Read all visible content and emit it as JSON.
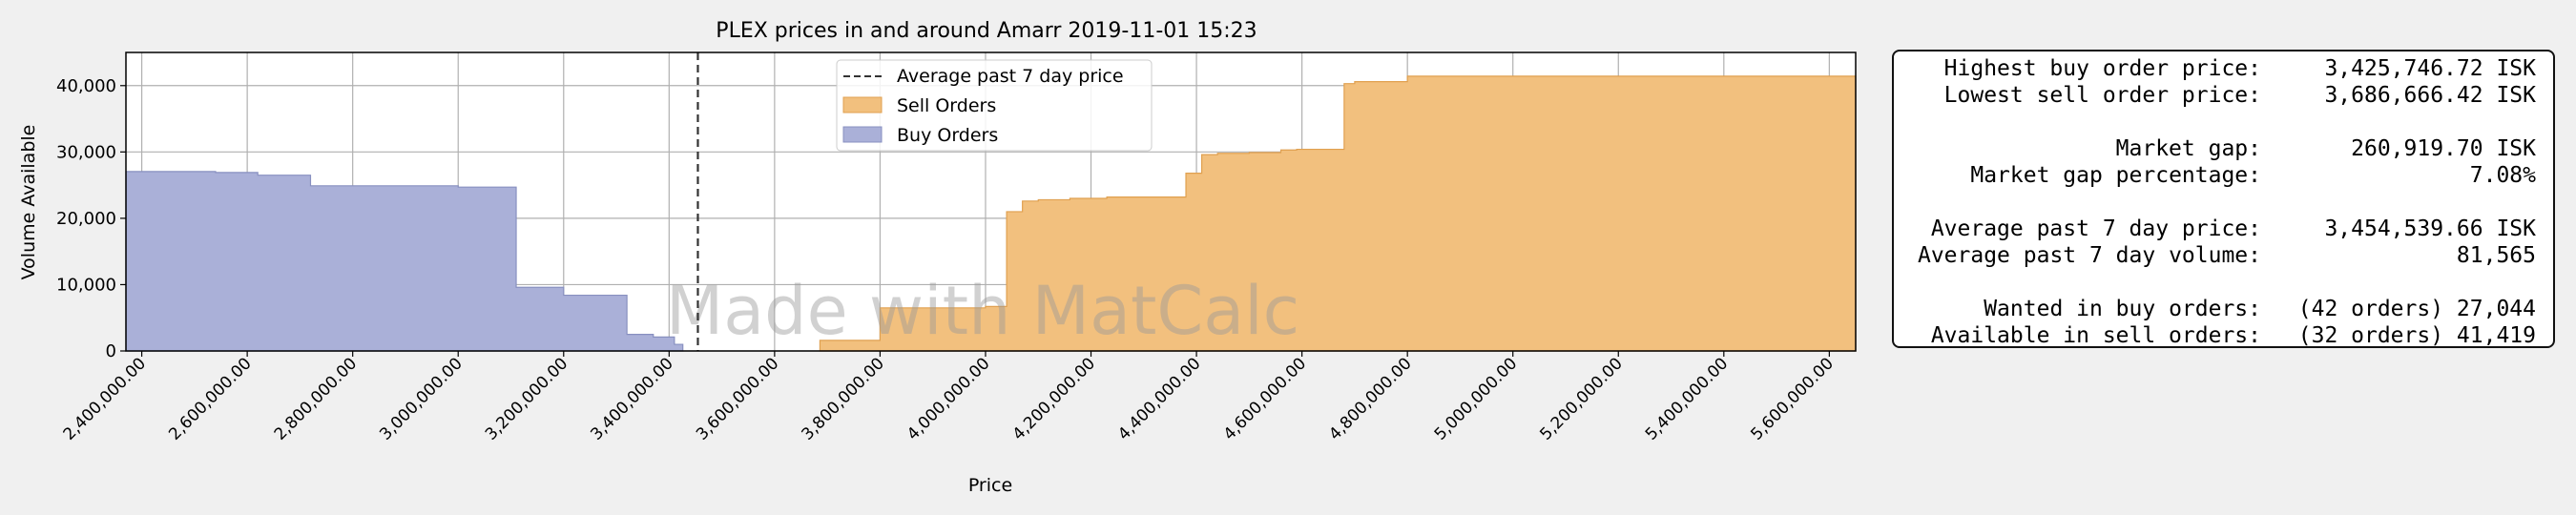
{
  "chart_data": {
    "type": "area",
    "title": "PLEX prices in and around Amarr 2019-11-01 15:23",
    "xlabel": "Price",
    "ylabel": "Volume Available",
    "xlim": [
      2370000,
      5650000
    ],
    "ylim": [
      0,
      45000
    ],
    "x_ticks": [
      2400000,
      2600000,
      2800000,
      3000000,
      3200000,
      3400000,
      3600000,
      3800000,
      4000000,
      4200000,
      4400000,
      4600000,
      4800000,
      5000000,
      5200000,
      5400000,
      5600000
    ],
    "x_tick_labels": [
      "2,400,000.00",
      "2,600,000.00",
      "2,800,000.00",
      "3,000,000.00",
      "3,200,000.00",
      "3,400,000.00",
      "3,600,000.00",
      "3,800,000.00",
      "4,000,000.00",
      "4,200,000.00",
      "4,400,000.00",
      "4,600,000.00",
      "4,800,000.00",
      "5,000,000.00",
      "5,200,000.00",
      "5,400,000.00",
      "5,600,000.00"
    ],
    "y_ticks": [
      0,
      10000,
      20000,
      30000,
      40000
    ],
    "y_tick_labels": [
      "0",
      "10,000",
      "20,000",
      "30,000",
      "40,000"
    ],
    "grid": true,
    "legend_placement": "top-center",
    "watermark": "Made with MatCalc",
    "avg_line": {
      "name": "Average past 7 day price",
      "x": 3454539.66,
      "color": "#333333"
    },
    "series": [
      {
        "name": "Buy Orders",
        "color": "#aab0d8",
        "edge": "#8890c0",
        "x": [
          2370000,
          2540000,
          2620000,
          2720000,
          3000000,
          3110000,
          3200000,
          3320000,
          3370000,
          3410000,
          3426000
        ],
        "y": [
          27044,
          26900,
          26500,
          24900,
          24700,
          9600,
          8400,
          2500,
          2100,
          1000,
          400
        ]
      },
      {
        "name": "Sell Orders",
        "color": "#f2c07e",
        "edge": "#e0a050",
        "x": [
          3686000,
          3800000,
          4000000,
          4040000,
          4070000,
          4100000,
          4160000,
          4230000,
          4380000,
          4410000,
          4440000,
          4500000,
          4560000,
          4590000,
          4680000,
          4700000,
          4800000,
          5650000
        ],
        "y": [
          1600,
          6500,
          6700,
          21000,
          22600,
          22800,
          23000,
          23200,
          26800,
          29600,
          29800,
          29900,
          30300,
          30400,
          40300,
          40600,
          41419,
          41419
        ]
      }
    ]
  },
  "info_box": {
    "rows": [
      {
        "label": "Highest buy order price:",
        "value": "3,425,746.72 ISK"
      },
      {
        "label": "Lowest sell order price:",
        "value": "3,686,666.42 ISK"
      },
      {
        "label": "Market gap:",
        "value": "260,919.70 ISK"
      },
      {
        "label": "Market gap percentage:",
        "value": "7.08%"
      },
      {
        "label": "Average past 7 day price:",
        "value": "3,454,539.66 ISK"
      },
      {
        "label": "Average past 7 day volume:",
        "value": "81,565"
      },
      {
        "label": "Wanted in buy orders:",
        "value": "(42 orders) 27,044"
      },
      {
        "label": "Available in sell orders:",
        "value": "(32 orders) 41,419"
      }
    ]
  }
}
